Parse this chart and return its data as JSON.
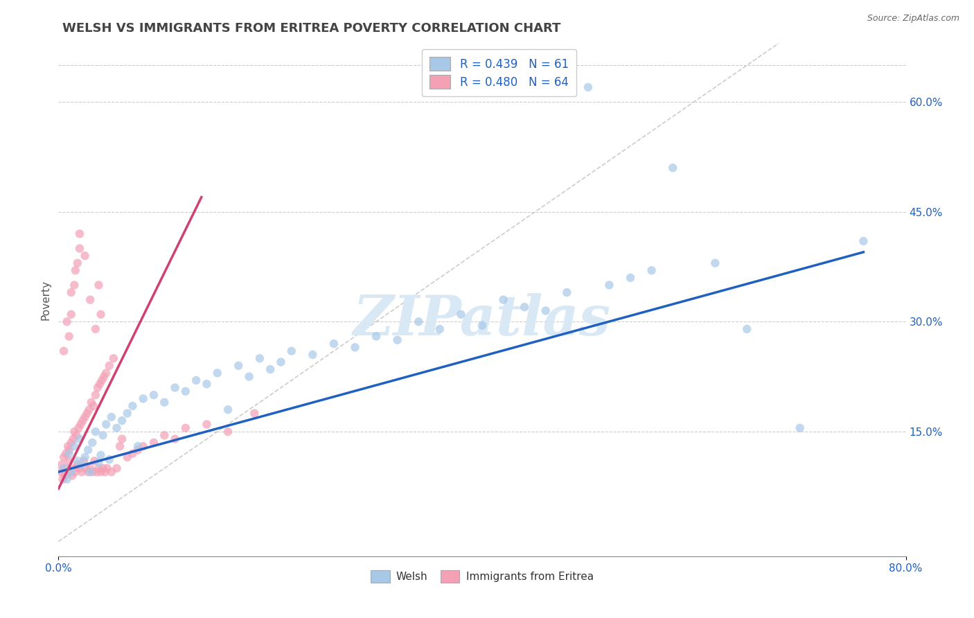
{
  "title": "WELSH VS IMMIGRANTS FROM ERITREA POVERTY CORRELATION CHART",
  "source": "Source: ZipAtlas.com",
  "ylabel": "Poverty",
  "ylabel_ticks": [
    "15.0%",
    "30.0%",
    "45.0%",
    "60.0%"
  ],
  "ylabel_tick_vals": [
    0.15,
    0.3,
    0.45,
    0.6
  ],
  "xlim": [
    0.0,
    0.8
  ],
  "ylim": [
    -0.02,
    0.68
  ],
  "welsh_R": 0.439,
  "welsh_N": 61,
  "eritrea_R": 0.48,
  "eritrea_N": 64,
  "welsh_color": "#a8c8e8",
  "eritrea_color": "#f4a0b5",
  "welsh_line_color": "#2060c0",
  "eritrea_line_color": "#d04070",
  "ref_line_color": "#cccccc",
  "background_color": "#ffffff",
  "grid_color": "#cccccc",
  "watermark": "ZIPatlas",
  "watermark_color": "#d8e8f5",
  "title_color": "#555555",
  "legend_text_color": "#2060c0",
  "welsh_x": [
    0.005,
    0.008,
    0.01,
    0.012,
    0.015,
    0.018,
    0.02,
    0.022,
    0.025,
    0.028,
    0.03,
    0.032,
    0.035,
    0.038,
    0.04,
    0.042,
    0.045,
    0.048,
    0.05,
    0.055,
    0.06,
    0.065,
    0.07,
    0.075,
    0.08,
    0.09,
    0.1,
    0.11,
    0.12,
    0.13,
    0.14,
    0.15,
    0.16,
    0.17,
    0.18,
    0.19,
    0.2,
    0.21,
    0.22,
    0.24,
    0.26,
    0.28,
    0.3,
    0.32,
    0.34,
    0.36,
    0.38,
    0.4,
    0.42,
    0.44,
    0.46,
    0.48,
    0.5,
    0.52,
    0.54,
    0.56,
    0.58,
    0.62,
    0.65,
    0.7,
    0.76
  ],
  "welsh_y": [
    0.1,
    0.085,
    0.12,
    0.095,
    0.13,
    0.11,
    0.14,
    0.105,
    0.115,
    0.125,
    0.095,
    0.135,
    0.15,
    0.108,
    0.118,
    0.145,
    0.16,
    0.112,
    0.17,
    0.155,
    0.165,
    0.175,
    0.185,
    0.13,
    0.195,
    0.2,
    0.19,
    0.21,
    0.205,
    0.22,
    0.215,
    0.23,
    0.18,
    0.24,
    0.225,
    0.25,
    0.235,
    0.245,
    0.26,
    0.255,
    0.27,
    0.265,
    0.28,
    0.275,
    0.3,
    0.29,
    0.31,
    0.295,
    0.33,
    0.32,
    0.315,
    0.34,
    0.62,
    0.35,
    0.36,
    0.37,
    0.51,
    0.38,
    0.29,
    0.155,
    0.41
  ],
  "eritrea_x": [
    0.002,
    0.003,
    0.004,
    0.005,
    0.006,
    0.007,
    0.008,
    0.009,
    0.01,
    0.01,
    0.011,
    0.012,
    0.013,
    0.014,
    0.015,
    0.015,
    0.016,
    0.017,
    0.018,
    0.019,
    0.02,
    0.021,
    0.022,
    0.023,
    0.024,
    0.025,
    0.026,
    0.027,
    0.028,
    0.029,
    0.03,
    0.031,
    0.032,
    0.033,
    0.034,
    0.035,
    0.036,
    0.037,
    0.038,
    0.039,
    0.04,
    0.041,
    0.042,
    0.043,
    0.044,
    0.045,
    0.046,
    0.048,
    0.05,
    0.052,
    0.055,
    0.058,
    0.06,
    0.065,
    0.07,
    0.075,
    0.08,
    0.09,
    0.1,
    0.11,
    0.12,
    0.14,
    0.16,
    0.185
  ],
  "eritrea_y": [
    0.095,
    0.105,
    0.085,
    0.115,
    0.09,
    0.12,
    0.1,
    0.13,
    0.11,
    0.125,
    0.095,
    0.135,
    0.09,
    0.14,
    0.1,
    0.15,
    0.095,
    0.145,
    0.105,
    0.155,
    0.1,
    0.16,
    0.095,
    0.165,
    0.11,
    0.17,
    0.1,
    0.175,
    0.095,
    0.18,
    0.1,
    0.19,
    0.095,
    0.185,
    0.11,
    0.2,
    0.095,
    0.21,
    0.1,
    0.215,
    0.095,
    0.22,
    0.1,
    0.225,
    0.095,
    0.23,
    0.1,
    0.24,
    0.095,
    0.25,
    0.1,
    0.13,
    0.14,
    0.115,
    0.12,
    0.125,
    0.13,
    0.135,
    0.145,
    0.14,
    0.155,
    0.16,
    0.15,
    0.175
  ],
  "eritrea_outlier_x": [
    0.01,
    0.012,
    0.015,
    0.018,
    0.02,
    0.025,
    0.03,
    0.035,
    0.038,
    0.04,
    0.005,
    0.008,
    0.012,
    0.016,
    0.02
  ],
  "eritrea_outlier_y": [
    0.28,
    0.31,
    0.35,
    0.38,
    0.42,
    0.39,
    0.33,
    0.29,
    0.35,
    0.31,
    0.26,
    0.3,
    0.34,
    0.37,
    0.4
  ],
  "welsh_line_x": [
    0.0,
    0.76
  ],
  "welsh_line_y": [
    0.095,
    0.395
  ],
  "eritrea_line_x": [
    0.0,
    0.135
  ],
  "eritrea_line_y": [
    0.072,
    0.47
  ],
  "ref_line_x": [
    0.0,
    0.68
  ],
  "ref_line_y": [
    0.0,
    0.68
  ]
}
